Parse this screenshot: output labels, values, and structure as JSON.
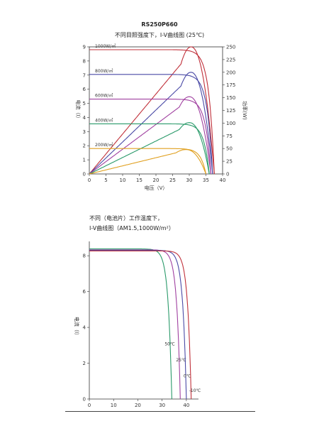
{
  "page_title": "RS250P660",
  "chart_data": [
    {
      "type": "line",
      "title": "不同目照强度下，I-V曲线图 (25℃)",
      "xlabel": "电压（V）",
      "ylabel": "电流（I）",
      "y2label": "功率(W)",
      "xlim": [
        0,
        40
      ],
      "ylim": [
        0,
        9
      ],
      "y2lim": [
        0,
        250
      ],
      "xticks": [
        "0",
        "5",
        "10",
        "15",
        "20",
        "25",
        "30",
        "35",
        "40"
      ],
      "yticks": [
        "0",
        "1",
        "2",
        "3",
        "4",
        "5",
        "6",
        "7",
        "8",
        "9"
      ],
      "y2ticks": [
        "0",
        "25",
        "50",
        "75",
        "100",
        "125",
        "150",
        "175",
        "200",
        "225",
        "250"
      ],
      "series": [
        {
          "name": "1000W/㎡",
          "color": "#c0303a",
          "isc": 8.8,
          "voc": 37.5,
          "vmp": 30.5,
          "pmax": 250
        },
        {
          "name": "800W/㎡",
          "color": "#4a4aa6",
          "isc": 7.05,
          "voc": 37.0,
          "vmp": 30.5,
          "pmax": 200
        },
        {
          "name": "600W/㎡",
          "color": "#a040a0",
          "isc": 5.3,
          "voc": 36.5,
          "vmp": 30.0,
          "pmax": 152
        },
        {
          "name": "400W/㎡",
          "color": "#2a9a6a",
          "isc": 3.55,
          "voc": 36.0,
          "vmp": 30.0,
          "pmax": 101
        },
        {
          "name": "200W/㎡",
          "color": "#e0a020",
          "isc": 1.8,
          "voc": 35.0,
          "vmp": 29.0,
          "pmax": 48
        }
      ]
    },
    {
      "type": "line",
      "title_line1": "不同（电池片）工作温度下，",
      "title_line2": "I-V曲线图（AM1.5,1000W/m²）",
      "xlabel": "",
      "ylabel": "电流（I）",
      "xlim": [
        0,
        45
      ],
      "ylim": [
        0,
        8.8
      ],
      "xticks": [
        "0",
        "10",
        "20",
        "30",
        "40"
      ],
      "yticks": [
        "0",
        "2",
        "4",
        "6",
        "8"
      ],
      "series": [
        {
          "name": "50℃",
          "color": "#2a9a6a",
          "isc": 8.38,
          "voc": 34.0
        },
        {
          "name": "25℃",
          "color": "#a040a0",
          "isc": 8.33,
          "voc": 37.5
        },
        {
          "name": "0℃",
          "color": "#4a4aa6",
          "isc": 8.3,
          "voc": 40.0
        },
        {
          "name": "-10℃",
          "color": "#c0303a",
          "isc": 8.27,
          "voc": 42.0
        }
      ]
    }
  ]
}
